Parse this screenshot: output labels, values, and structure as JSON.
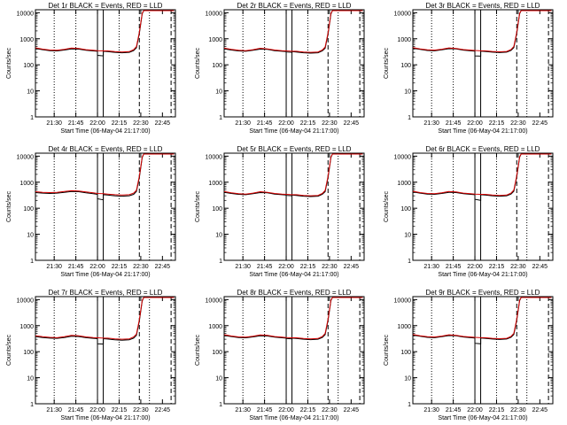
{
  "colors": {
    "events": "#000000",
    "lld": "#d40000",
    "background": "#ffffff"
  },
  "shared_axes": {
    "ylabel": "Counts/sec",
    "xlabel": "Start Time (06-May-04 21:17:00)",
    "y_scale": "log",
    "ylim": [
      1,
      13000
    ],
    "y_ticks": [
      1,
      10,
      100,
      1000,
      10000
    ],
    "y_tick_labels": [
      "1",
      "10",
      "100",
      "1000",
      "10000"
    ],
    "x_unit": "minutes after 21:17:00",
    "xlim": [
      0,
      97
    ],
    "x_ticks": [
      13,
      28,
      43,
      58,
      73,
      88
    ],
    "x_tick_labels": [
      "21:30",
      "21:45",
      "22:00",
      "22:15",
      "22:30",
      "22:45"
    ],
    "dotted_markers": [
      13,
      28,
      58,
      79
    ],
    "dashed_markers": [
      72,
      94
    ],
    "solid_markers": [
      43,
      47
    ]
  },
  "chart_data": [
    {
      "type": "line",
      "title": "Det 1r BLACK = Events, RED = LLD",
      "series": [
        {
          "name": "Events",
          "color": "#000000",
          "x": [
            0,
            5,
            10,
            15,
            20,
            25,
            30,
            35,
            40,
            43,
            43,
            47,
            47,
            50,
            55,
            60,
            65,
            68,
            70,
            72,
            74,
            75,
            76,
            96
          ],
          "values": [
            420,
            380,
            350,
            340,
            370,
            410,
            400,
            360,
            340,
            330,
            230,
            220,
            330,
            320,
            300,
            290,
            300,
            350,
            450,
            1600,
            9000,
            12000,
            12000,
            12000
          ]
        },
        {
          "name": "LLD",
          "color": "#d40000",
          "x": [
            0,
            5,
            10,
            15,
            20,
            25,
            30,
            35,
            40,
            43,
            47,
            50,
            55,
            60,
            65,
            68,
            70,
            72,
            74,
            75,
            76,
            96
          ],
          "values": [
            450,
            400,
            370,
            360,
            390,
            440,
            420,
            380,
            360,
            350,
            340,
            340,
            320,
            310,
            320,
            380,
            500,
            1800,
            9500,
            12000,
            12000,
            12000
          ]
        }
      ]
    },
    {
      "type": "line",
      "title": "Det 2r BLACK = Events, RED = LLD",
      "series": [
        {
          "name": "Events",
          "color": "#000000",
          "x": [
            0,
            5,
            10,
            15,
            20,
            25,
            30,
            35,
            40,
            43,
            43,
            47,
            47,
            50,
            55,
            60,
            65,
            68,
            70,
            72,
            74,
            75,
            76,
            96
          ],
          "values": [
            410,
            370,
            340,
            330,
            360,
            400,
            390,
            350,
            330,
            320,
            310,
            300,
            320,
            310,
            290,
            280,
            290,
            340,
            430,
            1500,
            8800,
            12000,
            12000,
            12000
          ]
        },
        {
          "name": "LLD",
          "color": "#d40000",
          "x": [
            0,
            5,
            10,
            15,
            20,
            25,
            30,
            35,
            40,
            43,
            47,
            50,
            55,
            60,
            65,
            68,
            70,
            72,
            74,
            75,
            76,
            96
          ],
          "values": [
            440,
            390,
            360,
            350,
            380,
            430,
            410,
            370,
            350,
            340,
            330,
            330,
            310,
            300,
            310,
            370,
            480,
            1700,
            9300,
            12000,
            12000,
            12000
          ]
        }
      ]
    },
    {
      "type": "line",
      "title": "Det 3r BLACK = Events, RED = LLD",
      "series": [
        {
          "name": "Events",
          "color": "#000000",
          "x": [
            0,
            5,
            10,
            15,
            20,
            25,
            30,
            35,
            40,
            43,
            43,
            47,
            47,
            50,
            55,
            60,
            65,
            68,
            70,
            72,
            74,
            75,
            76,
            96
          ],
          "values": [
            430,
            390,
            355,
            345,
            375,
            415,
            405,
            365,
            345,
            335,
            220,
            215,
            335,
            325,
            305,
            295,
            305,
            355,
            460,
            1600,
            9000,
            12000,
            12000,
            12000
          ]
        },
        {
          "name": "LLD",
          "color": "#d40000",
          "x": [
            0,
            5,
            10,
            15,
            20,
            25,
            30,
            35,
            40,
            43,
            47,
            50,
            55,
            60,
            65,
            68,
            70,
            72,
            74,
            75,
            76,
            96
          ],
          "values": [
            460,
            410,
            375,
            365,
            395,
            445,
            425,
            385,
            365,
            355,
            345,
            345,
            325,
            315,
            325,
            385,
            510,
            1800,
            9500,
            12000,
            12000,
            12000
          ]
        }
      ]
    },
    {
      "type": "line",
      "title": "Det 4r BLACK = Events, RED = LLD",
      "series": [
        {
          "name": "Events",
          "color": "#000000",
          "x": [
            0,
            5,
            10,
            15,
            20,
            25,
            30,
            35,
            40,
            43,
            43,
            47,
            47,
            50,
            55,
            60,
            65,
            68,
            70,
            72,
            74,
            75,
            76,
            96
          ],
          "values": [
            400,
            380,
            370,
            380,
            410,
            440,
            430,
            390,
            360,
            340,
            230,
            210,
            330,
            320,
            300,
            290,
            300,
            340,
            440,
            1500,
            8800,
            12000,
            12000,
            12000
          ]
        },
        {
          "name": "LLD",
          "color": "#d40000",
          "x": [
            0,
            5,
            10,
            15,
            20,
            25,
            30,
            35,
            40,
            43,
            47,
            50,
            55,
            60,
            65,
            68,
            70,
            72,
            74,
            75,
            76,
            96
          ],
          "values": [
            430,
            410,
            400,
            410,
            440,
            470,
            460,
            420,
            390,
            370,
            360,
            350,
            330,
            320,
            330,
            380,
            490,
            1700,
            9300,
            12000,
            12000,
            12000
          ]
        }
      ]
    },
    {
      "type": "line",
      "title": "Det 5r BLACK = Events, RED = LLD",
      "series": [
        {
          "name": "Events",
          "color": "#000000",
          "x": [
            0,
            5,
            10,
            15,
            20,
            25,
            30,
            35,
            40,
            43,
            43,
            47,
            47,
            50,
            55,
            60,
            65,
            68,
            70,
            72,
            74,
            75,
            76,
            96
          ],
          "values": [
            410,
            370,
            340,
            330,
            360,
            400,
            390,
            350,
            330,
            320,
            310,
            300,
            320,
            310,
            290,
            280,
            290,
            340,
            430,
            1500,
            8800,
            12000,
            12000,
            12000
          ]
        },
        {
          "name": "LLD",
          "color": "#d40000",
          "x": [
            0,
            5,
            10,
            15,
            20,
            25,
            30,
            35,
            40,
            43,
            47,
            50,
            55,
            60,
            65,
            68,
            70,
            72,
            74,
            75,
            76,
            96
          ],
          "values": [
            440,
            390,
            360,
            350,
            380,
            430,
            410,
            370,
            350,
            340,
            330,
            330,
            310,
            300,
            310,
            370,
            480,
            1700,
            9300,
            12000,
            12000,
            12000
          ]
        }
      ]
    },
    {
      "type": "line",
      "title": "Det 6r BLACK = Events, RED = LLD",
      "series": [
        {
          "name": "Events",
          "color": "#000000",
          "x": [
            0,
            5,
            10,
            15,
            20,
            25,
            30,
            35,
            40,
            43,
            43,
            47,
            47,
            50,
            55,
            60,
            65,
            68,
            70,
            72,
            74,
            75,
            76,
            96
          ],
          "values": [
            420,
            380,
            350,
            340,
            370,
            410,
            400,
            360,
            340,
            330,
            220,
            200,
            330,
            320,
            300,
            290,
            300,
            350,
            450,
            1600,
            9000,
            12000,
            12000,
            12000
          ]
        },
        {
          "name": "LLD",
          "color": "#d40000",
          "x": [
            0,
            5,
            10,
            15,
            20,
            25,
            30,
            35,
            40,
            43,
            47,
            50,
            55,
            60,
            65,
            68,
            70,
            72,
            74,
            75,
            76,
            96
          ],
          "values": [
            450,
            400,
            370,
            360,
            390,
            440,
            420,
            380,
            360,
            350,
            340,
            340,
            320,
            310,
            320,
            380,
            500,
            1800,
            9500,
            12000,
            12000,
            12000
          ]
        }
      ]
    },
    {
      "type": "line",
      "title": "Det 7r BLACK = Events, RED = LLD",
      "series": [
        {
          "name": "Events",
          "color": "#000000",
          "x": [
            0,
            5,
            10,
            15,
            20,
            25,
            30,
            35,
            40,
            43,
            43,
            47,
            47,
            50,
            55,
            60,
            65,
            68,
            70,
            72,
            74,
            75,
            76,
            96
          ],
          "values": [
            380,
            350,
            330,
            325,
            350,
            390,
            380,
            345,
            325,
            315,
            200,
            195,
            315,
            305,
            285,
            275,
            285,
            330,
            420,
            1500,
            8800,
            12000,
            12000,
            12000
          ]
        },
        {
          "name": "LLD",
          "color": "#d40000",
          "x": [
            0,
            5,
            10,
            15,
            20,
            25,
            30,
            35,
            40,
            43,
            47,
            50,
            55,
            60,
            65,
            68,
            70,
            72,
            74,
            75,
            76,
            96
          ],
          "values": [
            410,
            375,
            355,
            345,
            375,
            420,
            405,
            370,
            350,
            340,
            330,
            330,
            310,
            300,
            310,
            365,
            475,
            1700,
            9300,
            12000,
            12000,
            12000
          ]
        }
      ]
    },
    {
      "type": "line",
      "title": "Det 8r BLACK = Events, RED = LLD",
      "series": [
        {
          "name": "Events",
          "color": "#000000",
          "x": [
            0,
            5,
            10,
            15,
            20,
            25,
            30,
            35,
            40,
            43,
            43,
            47,
            47,
            50,
            55,
            60,
            65,
            68,
            70,
            72,
            74,
            75,
            76,
            96
          ],
          "values": [
            420,
            380,
            350,
            340,
            370,
            410,
            400,
            360,
            340,
            330,
            320,
            310,
            330,
            320,
            300,
            290,
            300,
            350,
            450,
            1600,
            9000,
            12000,
            12000,
            12000
          ]
        },
        {
          "name": "LLD",
          "color": "#d40000",
          "x": [
            0,
            5,
            10,
            15,
            20,
            25,
            30,
            35,
            40,
            43,
            47,
            50,
            55,
            60,
            65,
            68,
            70,
            72,
            74,
            75,
            76,
            96
          ],
          "values": [
            450,
            400,
            370,
            360,
            390,
            440,
            420,
            380,
            360,
            350,
            340,
            340,
            320,
            310,
            320,
            380,
            500,
            1800,
            9500,
            12000,
            12000,
            12000
          ]
        }
      ]
    },
    {
      "type": "line",
      "title": "Det 9r BLACK = Events, RED = LLD",
      "series": [
        {
          "name": "Events",
          "color": "#000000",
          "x": [
            0,
            5,
            10,
            15,
            20,
            25,
            30,
            35,
            40,
            43,
            43,
            47,
            47,
            50,
            55,
            60,
            65,
            68,
            70,
            72,
            74,
            75,
            76,
            96
          ],
          "values": [
            430,
            390,
            355,
            345,
            375,
            415,
            405,
            365,
            345,
            335,
            210,
            200,
            335,
            325,
            305,
            295,
            305,
            355,
            460,
            1600,
            9000,
            12000,
            12000,
            12000
          ]
        },
        {
          "name": "LLD",
          "color": "#d40000",
          "x": [
            0,
            5,
            10,
            15,
            20,
            25,
            30,
            35,
            40,
            43,
            47,
            50,
            55,
            60,
            65,
            68,
            70,
            72,
            74,
            75,
            76,
            96
          ],
          "values": [
            460,
            410,
            375,
            365,
            395,
            445,
            425,
            385,
            365,
            355,
            345,
            345,
            325,
            315,
            325,
            385,
            510,
            1800,
            9500,
            12000,
            12000,
            12000
          ]
        }
      ]
    }
  ]
}
